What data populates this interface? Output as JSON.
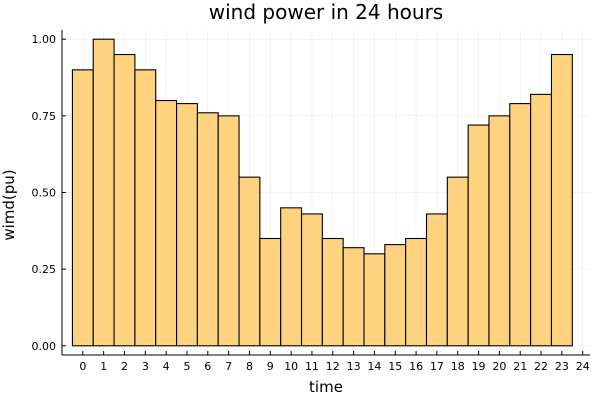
{
  "chart_data": {
    "type": "bar",
    "title": "wind power in 24 hours",
    "xlabel": "time",
    "ylabel": "wimd(pu)",
    "x": [
      0,
      1,
      2,
      3,
      4,
      5,
      6,
      7,
      8,
      9,
      10,
      11,
      12,
      13,
      14,
      15,
      16,
      17,
      18,
      19,
      20,
      21,
      22,
      23
    ],
    "values": [
      0.9,
      1.0,
      0.95,
      0.9,
      0.8,
      0.79,
      0.76,
      0.75,
      0.55,
      0.35,
      0.45,
      0.43,
      0.35,
      0.32,
      0.3,
      0.33,
      0.35,
      0.43,
      0.55,
      0.72,
      0.75,
      0.79,
      0.82,
      0.95
    ],
    "xticks": [
      0,
      1,
      2,
      3,
      4,
      5,
      6,
      7,
      8,
      9,
      10,
      11,
      12,
      13,
      14,
      15,
      16,
      17,
      18,
      19,
      20,
      21,
      22,
      23,
      24
    ],
    "yticks": [
      "0.00",
      "0.25",
      "0.50",
      "0.75",
      "1.00"
    ],
    "ylim": [
      0,
      1.03
    ],
    "grid": true,
    "legend": false,
    "bar_color": "#ffd280",
    "edge_color": "#000000"
  }
}
